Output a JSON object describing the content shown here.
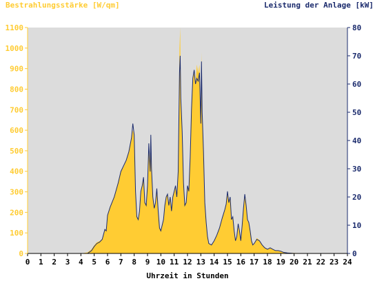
{
  "colors": {
    "irradiance": "#ffcc33",
    "power": "#1a2a6c",
    "plot_bg": "#dcdcdc",
    "left_text": "#ffcc33",
    "right_text": "#1a2a6c"
  },
  "chart_data": {
    "type": "area",
    "y_left_label": "Bestrahlungsstärke [W/qm]",
    "y_right_label": "Leistung der Anlage [kW]",
    "xlabel": "Uhrzeit in Stunden",
    "xlim": [
      0,
      24
    ],
    "ylim_left": [
      0,
      1100
    ],
    "ylim_right": [
      0,
      80
    ],
    "x_ticks": [
      0,
      1,
      2,
      3,
      4,
      5,
      6,
      7,
      8,
      9,
      10,
      11,
      12,
      13,
      14,
      15,
      16,
      17,
      18,
      19,
      20,
      21,
      22,
      23,
      24
    ],
    "y_left_ticks": [
      0,
      100,
      200,
      300,
      400,
      500,
      600,
      700,
      800,
      900,
      1000,
      1100
    ],
    "y_right_ticks": [
      0,
      10,
      20,
      30,
      40,
      50,
      60,
      70,
      80
    ],
    "grid": false,
    "series": [
      {
        "name": "Bestrahlungsstärke [W/qm]",
        "axis": "left",
        "style": "area",
        "points": [
          [
            0,
            0
          ],
          [
            4.0,
            0
          ],
          [
            4.5,
            5
          ],
          [
            4.8,
            20
          ],
          [
            5.0,
            40
          ],
          [
            5.2,
            55
          ],
          [
            5.4,
            60
          ],
          [
            5.6,
            70
          ],
          [
            5.8,
            120
          ],
          [
            5.9,
            110
          ],
          [
            6.0,
            190
          ],
          [
            6.2,
            230
          ],
          [
            6.5,
            280
          ],
          [
            6.8,
            350
          ],
          [
            7.0,
            400
          ],
          [
            7.2,
            420
          ],
          [
            7.4,
            450
          ],
          [
            7.6,
            500
          ],
          [
            7.8,
            560
          ],
          [
            7.9,
            600
          ],
          [
            8.0,
            580
          ],
          [
            8.1,
            300
          ],
          [
            8.2,
            180
          ],
          [
            8.3,
            160
          ],
          [
            8.4,
            200
          ],
          [
            8.5,
            300
          ],
          [
            8.6,
            330
          ],
          [
            8.7,
            360
          ],
          [
            8.8,
            250
          ],
          [
            8.9,
            230
          ],
          [
            9.0,
            330
          ],
          [
            9.1,
            540
          ],
          [
            9.2,
            400
          ],
          [
            9.25,
            580
          ],
          [
            9.3,
            420
          ],
          [
            9.4,
            280
          ],
          [
            9.5,
            220
          ],
          [
            9.6,
            250
          ],
          [
            9.7,
            310
          ],
          [
            9.8,
            200
          ],
          [
            9.9,
            120
          ],
          [
            10.0,
            110
          ],
          [
            10.2,
            160
          ],
          [
            10.3,
            230
          ],
          [
            10.4,
            280
          ],
          [
            10.5,
            290
          ],
          [
            10.6,
            230
          ],
          [
            10.7,
            270
          ],
          [
            10.8,
            210
          ],
          [
            10.9,
            270
          ],
          [
            11.0,
            300
          ],
          [
            11.1,
            330
          ],
          [
            11.2,
            280
          ],
          [
            11.3,
            400
          ],
          [
            11.4,
            1000
          ],
          [
            11.45,
            1100
          ],
          [
            11.5,
            780
          ],
          [
            11.6,
            600
          ],
          [
            11.7,
            350
          ],
          [
            11.8,
            240
          ],
          [
            11.9,
            250
          ],
          [
            12.0,
            330
          ],
          [
            12.1,
            300
          ],
          [
            12.2,
            470
          ],
          [
            12.3,
            700
          ],
          [
            12.4,
            850
          ],
          [
            12.5,
            880
          ],
          [
            12.6,
            820
          ],
          [
            12.7,
            920
          ],
          [
            12.8,
            880
          ],
          [
            12.9,
            920
          ],
          [
            13.0,
            650
          ],
          [
            13.05,
            980
          ],
          [
            13.1,
            700
          ],
          [
            13.2,
            500
          ],
          [
            13.3,
            250
          ],
          [
            13.4,
            150
          ],
          [
            13.5,
            80
          ],
          [
            13.6,
            50
          ],
          [
            13.8,
            40
          ],
          [
            14.0,
            60
          ],
          [
            14.2,
            90
          ],
          [
            14.4,
            120
          ],
          [
            14.6,
            170
          ],
          [
            14.8,
            210
          ],
          [
            14.9,
            240
          ],
          [
            15.0,
            290
          ],
          [
            15.1,
            250
          ],
          [
            15.2,
            270
          ],
          [
            15.3,
            160
          ],
          [
            15.4,
            180
          ],
          [
            15.5,
            110
          ],
          [
            15.6,
            60
          ],
          [
            15.7,
            80
          ],
          [
            15.8,
            130
          ],
          [
            15.9,
            110
          ],
          [
            16.0,
            60
          ],
          [
            16.1,
            130
          ],
          [
            16.2,
            220
          ],
          [
            16.3,
            280
          ],
          [
            16.4,
            230
          ],
          [
            16.5,
            160
          ],
          [
            16.6,
            150
          ],
          [
            16.7,
            110
          ],
          [
            16.8,
            60
          ],
          [
            16.9,
            40
          ],
          [
            17.0,
            45
          ],
          [
            17.2,
            75
          ],
          [
            17.4,
            65
          ],
          [
            17.6,
            40
          ],
          [
            17.8,
            30
          ],
          [
            18.0,
            20
          ],
          [
            18.2,
            25
          ],
          [
            18.4,
            20
          ],
          [
            18.6,
            15
          ],
          [
            18.8,
            12
          ],
          [
            19.0,
            10
          ],
          [
            19.2,
            5
          ],
          [
            19.5,
            3
          ],
          [
            20.0,
            2
          ],
          [
            21.0,
            1
          ],
          [
            24.0,
            0
          ]
        ]
      },
      {
        "name": "Leistung der Anlage [kW]",
        "axis": "right",
        "style": "line",
        "points": [
          [
            0,
            0
          ],
          [
            4.5,
            0
          ],
          [
            4.8,
            1
          ],
          [
            5.0,
            2.5
          ],
          [
            5.2,
            3.5
          ],
          [
            5.4,
            4
          ],
          [
            5.6,
            5
          ],
          [
            5.8,
            8.5
          ],
          [
            5.9,
            8
          ],
          [
            6.0,
            13.5
          ],
          [
            6.2,
            16.5
          ],
          [
            6.5,
            20
          ],
          [
            6.8,
            25
          ],
          [
            7.0,
            29
          ],
          [
            7.2,
            31
          ],
          [
            7.4,
            33
          ],
          [
            7.6,
            36
          ],
          [
            7.8,
            41
          ],
          [
            7.9,
            46
          ],
          [
            8.0,
            42
          ],
          [
            8.1,
            22
          ],
          [
            8.2,
            13
          ],
          [
            8.3,
            12
          ],
          [
            8.4,
            15
          ],
          [
            8.5,
            22
          ],
          [
            8.6,
            24
          ],
          [
            8.7,
            27
          ],
          [
            8.8,
            18
          ],
          [
            8.9,
            17
          ],
          [
            9.0,
            24
          ],
          [
            9.1,
            39
          ],
          [
            9.2,
            29
          ],
          [
            9.25,
            42
          ],
          [
            9.3,
            30
          ],
          [
            9.4,
            20
          ],
          [
            9.5,
            16
          ],
          [
            9.6,
            18
          ],
          [
            9.7,
            23
          ],
          [
            9.8,
            15
          ],
          [
            9.9,
            9
          ],
          [
            10.0,
            8
          ],
          [
            10.2,
            12
          ],
          [
            10.3,
            17
          ],
          [
            10.4,
            20
          ],
          [
            10.5,
            21
          ],
          [
            10.6,
            17
          ],
          [
            10.7,
            20
          ],
          [
            10.8,
            15
          ],
          [
            10.9,
            20
          ],
          [
            11.0,
            22
          ],
          [
            11.1,
            24
          ],
          [
            11.2,
            20
          ],
          [
            11.3,
            29
          ],
          [
            11.4,
            64
          ],
          [
            11.45,
            70
          ],
          [
            11.5,
            55
          ],
          [
            11.6,
            43
          ],
          [
            11.7,
            25
          ],
          [
            11.8,
            17
          ],
          [
            11.9,
            18
          ],
          [
            12.0,
            24
          ],
          [
            12.1,
            22
          ],
          [
            12.2,
            34
          ],
          [
            12.3,
            51
          ],
          [
            12.4,
            62
          ],
          [
            12.5,
            65
          ],
          [
            12.6,
            60
          ],
          [
            12.7,
            62
          ],
          [
            12.8,
            61
          ],
          [
            12.9,
            64
          ],
          [
            13.0,
            46
          ],
          [
            13.05,
            68
          ],
          [
            13.1,
            50
          ],
          [
            13.2,
            36
          ],
          [
            13.3,
            18
          ],
          [
            13.4,
            11
          ],
          [
            13.5,
            6
          ],
          [
            13.6,
            3.5
          ],
          [
            13.8,
            3
          ],
          [
            14.0,
            4.5
          ],
          [
            14.2,
            6.5
          ],
          [
            14.4,
            9
          ],
          [
            14.6,
            12.5
          ],
          [
            14.8,
            15.5
          ],
          [
            14.9,
            17.5
          ],
          [
            15.0,
            22
          ],
          [
            15.1,
            18
          ],
          [
            15.2,
            20
          ],
          [
            15.3,
            12
          ],
          [
            15.4,
            13
          ],
          [
            15.5,
            8
          ],
          [
            15.6,
            4.5
          ],
          [
            15.7,
            6
          ],
          [
            15.8,
            10.5
          ],
          [
            15.9,
            8
          ],
          [
            16.0,
            4.5
          ],
          [
            16.1,
            10
          ],
          [
            16.2,
            16
          ],
          [
            16.3,
            21
          ],
          [
            16.4,
            17
          ],
          [
            16.5,
            12
          ],
          [
            16.6,
            11
          ],
          [
            16.7,
            8
          ],
          [
            16.8,
            4.5
          ],
          [
            16.9,
            3
          ],
          [
            17.0,
            3.5
          ],
          [
            17.2,
            5
          ],
          [
            17.4,
            4.5
          ],
          [
            17.6,
            3
          ],
          [
            17.8,
            2
          ],
          [
            18.0,
            1.5
          ],
          [
            18.2,
            2
          ],
          [
            18.4,
            1.5
          ],
          [
            18.6,
            1
          ],
          [
            18.8,
            1
          ],
          [
            19.0,
            0.8
          ],
          [
            19.2,
            0.4
          ],
          [
            19.5,
            0.2
          ],
          [
            20.0,
            0
          ],
          [
            24.0,
            0
          ]
        ]
      }
    ]
  }
}
